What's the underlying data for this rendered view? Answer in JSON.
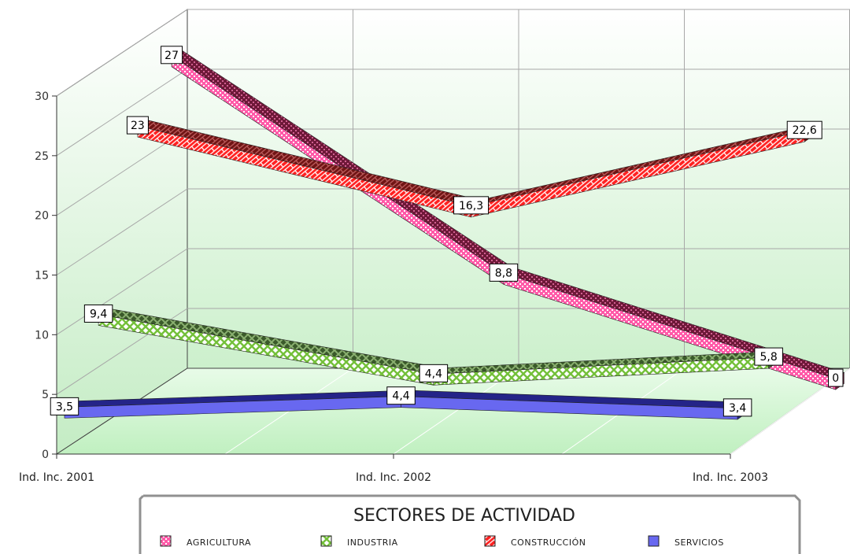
{
  "chart_data": {
    "type": "line",
    "categories": [
      "Ind. Inc. 2001",
      "Ind. Inc. 2002",
      "Ind. Inc. 2003"
    ],
    "series": [
      {
        "name": "AGRICULTURA",
        "values": [
          27,
          8.8,
          0
        ],
        "labels": [
          "27",
          "8,8",
          "0"
        ],
        "color": "#ff69b4",
        "dark": "#7a2040"
      },
      {
        "name": "INDUSTRIA",
        "values": [
          9.4,
          4.4,
          5.8
        ],
        "labels": [
          "9,4",
          "4,4",
          "5,8"
        ],
        "color": "#8cd04a",
        "dark": "#3f6a2e"
      },
      {
        "name": "CONSTRUCCIÓN",
        "values": [
          23,
          16.3,
          22.6
        ],
        "labels": [
          "23",
          "16,3",
          "22,6"
        ],
        "color": "#ff1e1e",
        "dark": "#7a1616"
      },
      {
        "name": "SERVICIOS",
        "values": [
          3.5,
          4.4,
          3.4
        ],
        "labels": [
          "3,5",
          "4,4",
          "3,4"
        ],
        "color": "#6666ee",
        "dark": "#252590"
      }
    ],
    "yticks": [
      "0",
      "5",
      "10",
      "15",
      "20",
      "25",
      "30"
    ],
    "ylim": [
      0,
      30
    ],
    "grid": true,
    "legend": {
      "title": "SECTORES DE ACTIVIDAD",
      "position": "bottom"
    }
  }
}
